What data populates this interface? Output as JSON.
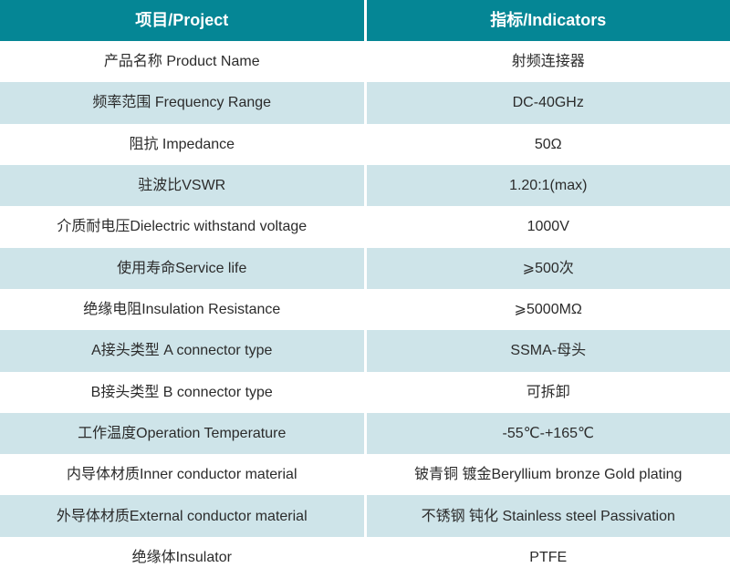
{
  "colors": {
    "header_bg": "#058695",
    "header_text": "#FFFFFF",
    "row_white_bg": "#FFFFFF",
    "row_alt_bg": "#CEE4E9",
    "cell_text": "#2B2B2B",
    "divider": "#FFFFFF"
  },
  "table": {
    "headers": [
      "项目/Project",
      "指标/Indicators"
    ],
    "rows": [
      {
        "project": "产品名称 Product Name",
        "indicator": "射频连接器"
      },
      {
        "project": "频率范围 Frequency Range",
        "indicator": "DC-40GHz"
      },
      {
        "project": "阻抗 Impedance",
        "indicator": "50Ω"
      },
      {
        "project": "驻波比VSWR",
        "indicator": "1.20:1(max)"
      },
      {
        "project": "介质耐电压Dielectric withstand voltage",
        "indicator": "1000V"
      },
      {
        "project": "使用寿命Service life",
        "indicator": "⩾500次"
      },
      {
        "project": "绝缘电阻Insulation Resistance",
        "indicator": "⩾5000MΩ"
      },
      {
        "project": "A接头类型 A connector type",
        "indicator": "SSMA-母头"
      },
      {
        "project": "B接头类型 B connector type",
        "indicator": "可拆卸"
      },
      {
        "project": "工作温度Operation Temperature",
        "indicator": "-55℃-+165℃"
      },
      {
        "project": "内导体材质Inner conductor material",
        "indicator": "铍青铜 镀金Beryllium bronze Gold plating"
      },
      {
        "project": "外导体材质External conductor material",
        "indicator": "不锈钢 钝化 Stainless steel Passivation"
      },
      {
        "project": "绝缘体Insulator",
        "indicator": "PTFE"
      }
    ]
  }
}
